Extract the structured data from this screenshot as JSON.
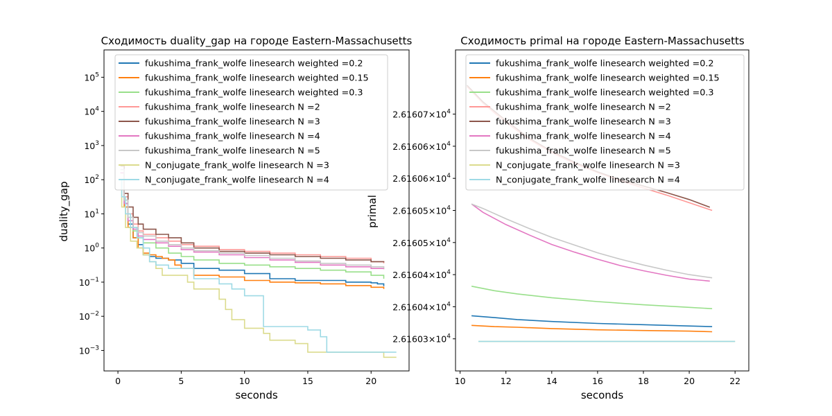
{
  "chart_data": [
    {
      "type": "line",
      "title": "Сходимость duality_gap на городе Eastern-Massachusetts",
      "xlabel": "seconds",
      "ylabel": "duality_gap",
      "xlim": [
        -1.1,
        23
      ],
      "ylim_log10": [
        -3.6,
        5.8
      ],
      "yscale": "log",
      "xticks": [
        0,
        5,
        10,
        15,
        20
      ],
      "yticks": [
        {
          "value": -3,
          "base": "10",
          "exp": "−3"
        },
        {
          "value": -2,
          "base": "10",
          "exp": "−2"
        },
        {
          "value": -1,
          "base": "10",
          "exp": "−1"
        },
        {
          "value": 0,
          "base": "10",
          "exp": "0"
        },
        {
          "value": 1,
          "base": "10",
          "exp": "1"
        },
        {
          "value": 2,
          "base": "10",
          "exp": "2"
        },
        {
          "value": 3,
          "base": "10",
          "exp": "3"
        },
        {
          "value": 4,
          "base": "10",
          "exp": "4"
        },
        {
          "value": 5,
          "base": "10",
          "exp": "5"
        }
      ],
      "legend_position": "top-right",
      "grid": false,
      "series": [
        {
          "name": "fukushima_frank_wolfe linesearch weighted =0.2",
          "color": "#1f77b4",
          "x": [
            0.2,
            0.5,
            0.8,
            1.2,
            1.6,
            2.0,
            2.5,
            3.0,
            4.0,
            5.0,
            6.0,
            8.0,
            10.0,
            12.0,
            14.0,
            16.0,
            18.0,
            20.0,
            20.5,
            21.0
          ],
          "y_log10": [
            2.0,
            1.3,
            0.7,
            0.3,
            0.1,
            -0.2,
            -0.25,
            -0.3,
            -0.35,
            -0.45,
            -0.6,
            -0.65,
            -0.75,
            -0.9,
            -0.95,
            -0.95,
            -1.0,
            -1.02,
            -1.05,
            -1.12
          ]
        },
        {
          "name": "fukushima_frank_wolfe linesearch weighted =0.15",
          "color": "#ff7f0e",
          "x": [
            0.2,
            0.5,
            0.8,
            1.2,
            1.6,
            2.0,
            2.5,
            3.0,
            3.5,
            4.0,
            4.5,
            5.0,
            6.0,
            8.0,
            10.0,
            12.0,
            14.0,
            16.0,
            18.0,
            20.0,
            21.0
          ],
          "y_log10": [
            2.0,
            1.2,
            0.6,
            0.3,
            0.0,
            -0.15,
            -0.2,
            -0.25,
            -0.3,
            -0.35,
            -0.5,
            -0.6,
            -0.8,
            -0.85,
            -0.95,
            -1.0,
            -1.02,
            -1.05,
            -1.1,
            -1.15,
            -1.2
          ]
        },
        {
          "name": "fukushima_frank_wolfe linesearch weighted =0.3",
          "color": "#98df8a",
          "x": [
            0.2,
            0.5,
            0.8,
            1.2,
            1.6,
            2.0,
            3.0,
            4.0,
            5.0,
            6.0,
            8.0,
            10.0,
            12.0,
            14.0,
            16.0,
            18.0,
            20.0,
            21.0
          ],
          "y_log10": [
            2.2,
            1.4,
            0.8,
            0.5,
            0.3,
            0.15,
            0.0,
            -0.15,
            -0.25,
            -0.35,
            -0.45,
            -0.5,
            -0.55,
            -0.6,
            -0.65,
            -0.7,
            -0.8,
            -0.9
          ]
        },
        {
          "name": "fukushima_frank_wolfe linesearch N =2",
          "color": "#ff9896",
          "x": [
            0.2,
            0.5,
            0.8,
            1.2,
            1.6,
            2.0,
            3.0,
            4.0,
            5.0,
            6.0,
            8.0,
            10.0,
            12.0,
            14.0,
            16.0,
            18.0,
            20.0,
            21.0
          ],
          "y_log10": [
            2.2,
            1.5,
            1.0,
            0.7,
            0.5,
            0.4,
            0.3,
            0.2,
            0.1,
            0.05,
            -0.05,
            -0.1,
            -0.15,
            -0.2,
            -0.25,
            -0.3,
            -0.4,
            -0.45
          ]
        },
        {
          "name": "fukushima_frank_wolfe linesearch N =3",
          "color": "#8c564b",
          "x": [
            0.2,
            0.5,
            0.8,
            1.2,
            1.6,
            2.0,
            3.0,
            4.0,
            5.0,
            6.0,
            8.0,
            10.0,
            12.0,
            14.0,
            16.0,
            18.0,
            20.0,
            21.0
          ],
          "y_log10": [
            2.4,
            1.6,
            1.2,
            0.9,
            0.7,
            0.55,
            0.4,
            0.3,
            0.15,
            0.0,
            -0.1,
            -0.15,
            -0.2,
            -0.25,
            -0.3,
            -0.35,
            -0.4,
            -0.42
          ]
        },
        {
          "name": "fukushima_frank_wolfe linesearch N =4",
          "color": "#e377c2",
          "x": [
            0.2,
            0.5,
            0.8,
            1.2,
            1.6,
            2.0,
            3.0,
            4.0,
            5.0,
            6.0,
            8.0,
            10.0,
            12.0,
            14.0,
            16.0,
            18.0,
            20.0,
            21.0
          ],
          "y_log10": [
            2.2,
            1.3,
            0.8,
            0.55,
            0.35,
            0.25,
            0.15,
            0.05,
            -0.05,
            -0.12,
            -0.2,
            -0.28,
            -0.35,
            -0.42,
            -0.5,
            -0.55,
            -0.6,
            -0.62
          ]
        },
        {
          "name": "fukushima_frank_wolfe linesearch N =5",
          "color": "#c7c7c7",
          "x": [
            0.2,
            0.5,
            0.8,
            1.2,
            1.6,
            2.0,
            3.0,
            4.0,
            5.0,
            6.0,
            8.0,
            10.0,
            12.0,
            14.0,
            16.0,
            18.0,
            20.0,
            21.0
          ],
          "y_log10": [
            2.3,
            1.4,
            0.9,
            0.6,
            0.45,
            0.35,
            0.2,
            0.1,
            0.0,
            -0.08,
            -0.15,
            -0.22,
            -0.3,
            -0.38,
            -0.45,
            -0.5,
            -0.55,
            -0.6
          ]
        },
        {
          "name": "N_conjugate_frank_wolfe linesearch N =3",
          "color": "#dbdb8d",
          "x": [
            0.1,
            0.3,
            0.6,
            1.0,
            1.5,
            2.0,
            2.5,
            3.0,
            3.5,
            4.0,
            5.0,
            5.5,
            6.0,
            7.0,
            8.0,
            8.5,
            9.0,
            10.0,
            11.0,
            11.5,
            12.0,
            13.0,
            14.0,
            15.0,
            16.0,
            17.0,
            18.0,
            19.0,
            20.0,
            21.0,
            22.0
          ],
          "y_log10": [
            2.0,
            1.2,
            0.6,
            0.2,
            0.0,
            -0.2,
            -0.4,
            -0.6,
            -0.8,
            -0.8,
            -0.8,
            -1.0,
            -1.2,
            -1.2,
            -1.5,
            -1.8,
            -2.1,
            -2.35,
            -2.35,
            -2.5,
            -2.7,
            -2.7,
            -2.8,
            -3.05,
            -3.05,
            -3.05,
            -3.05,
            -3.05,
            -3.05,
            -3.2,
            -3.2
          ]
        },
        {
          "name": "N_conjugate_frank_wolfe linesearch N =4",
          "color": "#9edae5",
          "x": [
            0.1,
            0.3,
            0.6,
            1.0,
            1.5,
            2.0,
            2.5,
            3.0,
            3.5,
            4.0,
            5.0,
            6.0,
            7.0,
            8.0,
            9.0,
            10.0,
            11.0,
            11.5,
            12.0,
            13.0,
            14.0,
            15.0,
            16.0,
            16.5,
            17.0,
            18.0,
            19.0,
            20.0,
            21.0,
            22.0
          ],
          "y_log10": [
            2.0,
            1.5,
            1.0,
            0.6,
            0.3,
            0.0,
            -0.4,
            -0.5,
            -0.5,
            -0.6,
            -0.6,
            -0.9,
            -0.9,
            -1.05,
            -1.2,
            -1.4,
            -1.4,
            -2.3,
            -2.3,
            -2.3,
            -2.3,
            -2.4,
            -2.6,
            -3.05,
            -3.05,
            -3.05,
            -3.05,
            -3.05,
            -3.05,
            -3.05
          ]
        }
      ]
    },
    {
      "type": "line",
      "title": "Сходимость primal на городе Eastern-Massachusetts",
      "xlabel": "seconds",
      "ylabel": "primal",
      "xlim": [
        9.8,
        22.6
      ],
      "ylim": [
        26160.25,
        26160.75
      ],
      "yscale": "log",
      "xticks": [
        10,
        12,
        14,
        16,
        18,
        20,
        22
      ],
      "yticks": [
        {
          "value": 26160.3,
          "mant": "2.61603",
          "base": "10",
          "exp": "4"
        },
        {
          "value": 26160.35,
          "mant": "2.61604",
          "base": "10",
          "exp": "4"
        },
        {
          "value": 26160.4,
          "mant": "2.61604",
          "base": "10",
          "exp": "4"
        },
        {
          "value": 26160.45,
          "mant": "2.61605",
          "base": "10",
          "exp": "4"
        },
        {
          "value": 26160.5,
          "mant": "2.61605",
          "base": "10",
          "exp": "4"
        },
        {
          "value": 26160.55,
          "mant": "2.61606",
          "base": "10",
          "exp": "4"
        },
        {
          "value": 26160.6,
          "mant": "2.61606",
          "base": "10",
          "exp": "4"
        },
        {
          "value": 26160.65,
          "mant": "2.61607",
          "base": "10",
          "exp": "4"
        }
      ],
      "legend_position": "top-right",
      "grid": false,
      "series": [
        {
          "name": "fukushima_frank_wolfe linesearch weighted =0.2",
          "color": "#1f77b4",
          "x": [
            10.5,
            11.5,
            12.5,
            14,
            16,
            18,
            20,
            21
          ],
          "y": [
            26160.336,
            26160.333,
            26160.33,
            26160.327,
            26160.324,
            26160.322,
            26160.32,
            26160.319
          ]
        },
        {
          "name": "fukushima_frank_wolfe linesearch weighted =0.15",
          "color": "#ff7f0e",
          "x": [
            10.5,
            11.5,
            12.5,
            14,
            16,
            18,
            20,
            21
          ],
          "y": [
            26160.321,
            26160.319,
            26160.318,
            26160.316,
            26160.314,
            26160.313,
            26160.312,
            26160.311
          ]
        },
        {
          "name": "fukushima_frank_wolfe linesearch weighted =0.3",
          "color": "#98df8a",
          "x": [
            10.5,
            11.5,
            12.5,
            14,
            16,
            18,
            20,
            21
          ],
          "y": [
            26160.382,
            26160.375,
            26160.37,
            26160.364,
            26160.358,
            26160.353,
            26160.349,
            26160.347
          ]
        },
        {
          "name": "fukushima_frank_wolfe linesearch N =2",
          "color": "#ff9896",
          "x": [
            10.3,
            11,
            12,
            13,
            14,
            15,
            16,
            17,
            18,
            19,
            20,
            21
          ],
          "y": [
            26160.693,
            26160.667,
            26160.637,
            26160.611,
            26160.59,
            26160.573,
            26160.559,
            26160.546,
            26160.535,
            26160.524,
            26160.512,
            26160.5
          ]
        },
        {
          "name": "fukushima_frank_wolfe linesearch N =3",
          "color": "#8c564b",
          "x": [
            10.3,
            11,
            12,
            13,
            14,
            15,
            16,
            17,
            18,
            19,
            20,
            20.9
          ],
          "y": [
            26160.695,
            26160.669,
            26160.64,
            26160.613,
            26160.592,
            26160.575,
            26160.56,
            26160.548,
            26160.538,
            26160.528,
            26160.517,
            26160.505
          ]
        },
        {
          "name": "fukushima_frank_wolfe linesearch N =4",
          "color": "#e377c2",
          "x": [
            10.5,
            11,
            12,
            13,
            14,
            15,
            16,
            17,
            18,
            19,
            20,
            20.9
          ],
          "y": [
            26160.51,
            26160.497,
            26160.478,
            26160.462,
            26160.447,
            26160.435,
            26160.424,
            26160.414,
            26160.406,
            26160.399,
            26160.393,
            26160.39
          ]
        },
        {
          "name": "fukushima_frank_wolfe linesearch N =5",
          "color": "#c7c7c7",
          "x": [
            10.5,
            11,
            12,
            13,
            14,
            15,
            16,
            17,
            18,
            19,
            20,
            21
          ],
          "y": [
            26160.51,
            26160.503,
            26160.487,
            26160.472,
            26160.458,
            26160.446,
            26160.434,
            26160.424,
            26160.415,
            26160.407,
            26160.4,
            26160.395
          ]
        },
        {
          "name": "N_conjugate_frank_wolfe linesearch N =3",
          "color": "#dbdb8d",
          "x": [
            10.8,
            22
          ],
          "y": [
            26160.296,
            26160.296
          ]
        },
        {
          "name": "N_conjugate_frank_wolfe linesearch N =4",
          "color": "#9edae5",
          "x": [
            10.8,
            22
          ],
          "y": [
            26160.296,
            26160.296
          ]
        }
      ]
    }
  ]
}
